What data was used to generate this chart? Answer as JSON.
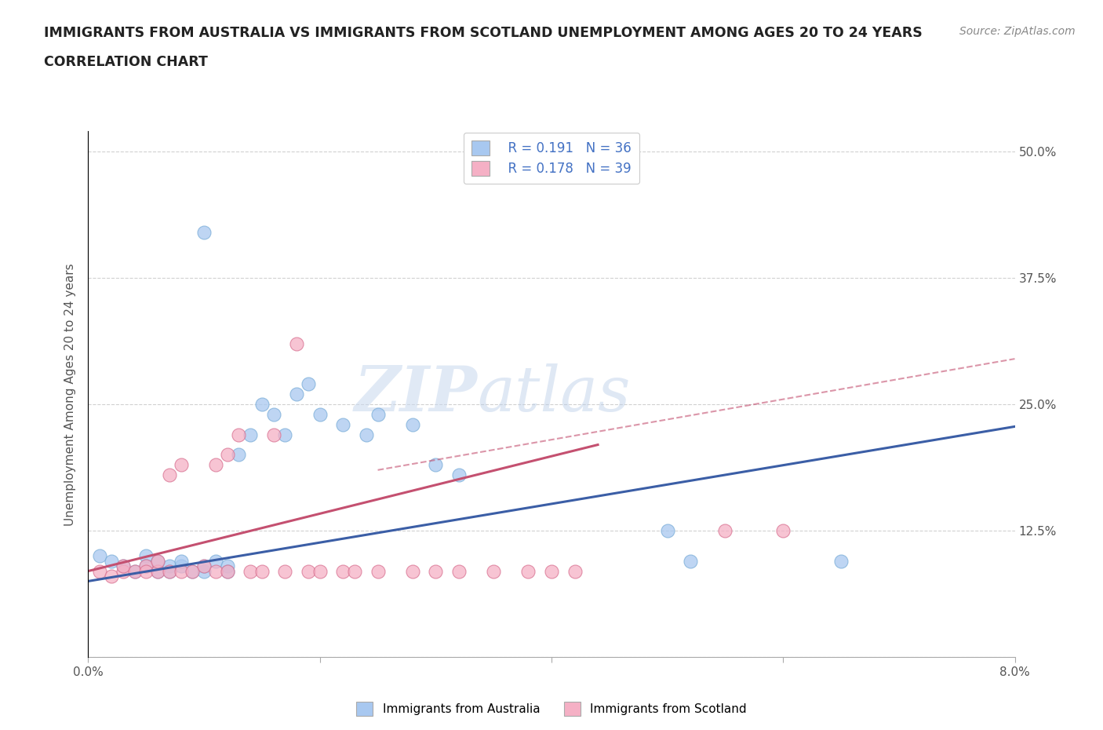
{
  "title_line1": "IMMIGRANTS FROM AUSTRALIA VS IMMIGRANTS FROM SCOTLAND UNEMPLOYMENT AMONG AGES 20 TO 24 YEARS",
  "title_line2": "CORRELATION CHART",
  "source_text": "Source: ZipAtlas.com",
  "ylabel": "Unemployment Among Ages 20 to 24 years",
  "xlim": [
    0.0,
    0.08
  ],
  "ylim": [
    0.0,
    0.52
  ],
  "xticks": [
    0.0,
    0.02,
    0.04,
    0.06,
    0.08
  ],
  "xtick_labels": [
    "0.0%",
    "",
    "",
    "",
    "8.0%"
  ],
  "ytick_positions": [
    0.0,
    0.125,
    0.25,
    0.375,
    0.5
  ],
  "ytick_labels_right": [
    "",
    "12.5%",
    "25.0%",
    "37.5%",
    "50.0%"
  ],
  "australia_color": "#a8c8f0",
  "australia_edge_color": "#7aadd8",
  "scotland_color": "#f5b0c5",
  "scotland_edge_color": "#d87090",
  "australia_line_color": "#3b5ea6",
  "scotland_line_color": "#c45070",
  "scotland_dashed_color": "#c45070",
  "R_australia": 0.191,
  "N_australia": 36,
  "R_scotland": 0.178,
  "N_scotland": 39,
  "legend_label_australia": "Immigrants from Australia",
  "legend_label_scotland": "Immigrants from Scotland",
  "watermark_part1": "ZIP",
  "watermark_part2": "atlas",
  "background_color": "#ffffff",
  "grid_color": "#cccccc",
  "australia_scatter": [
    [
      0.001,
      0.1
    ],
    [
      0.002,
      0.095
    ],
    [
      0.003,
      0.09
    ],
    [
      0.004,
      0.085
    ],
    [
      0.005,
      0.1
    ],
    [
      0.005,
      0.09
    ],
    [
      0.006,
      0.085
    ],
    [
      0.006,
      0.095
    ],
    [
      0.007,
      0.09
    ],
    [
      0.007,
      0.085
    ],
    [
      0.008,
      0.09
    ],
    [
      0.008,
      0.095
    ],
    [
      0.009,
      0.085
    ],
    [
      0.01,
      0.085
    ],
    [
      0.01,
      0.09
    ],
    [
      0.011,
      0.095
    ],
    [
      0.012,
      0.09
    ],
    [
      0.012,
      0.085
    ],
    [
      0.013,
      0.2
    ],
    [
      0.014,
      0.22
    ],
    [
      0.015,
      0.25
    ],
    [
      0.016,
      0.24
    ],
    [
      0.017,
      0.22
    ],
    [
      0.018,
      0.26
    ],
    [
      0.019,
      0.27
    ],
    [
      0.02,
      0.24
    ],
    [
      0.022,
      0.23
    ],
    [
      0.024,
      0.22
    ],
    [
      0.025,
      0.24
    ],
    [
      0.028,
      0.23
    ],
    [
      0.03,
      0.19
    ],
    [
      0.032,
      0.18
    ],
    [
      0.01,
      0.42
    ],
    [
      0.05,
      0.125
    ],
    [
      0.052,
      0.095
    ],
    [
      0.065,
      0.095
    ]
  ],
  "scotland_scatter": [
    [
      0.001,
      0.085
    ],
    [
      0.002,
      0.08
    ],
    [
      0.003,
      0.085
    ],
    [
      0.003,
      0.09
    ],
    [
      0.004,
      0.085
    ],
    [
      0.005,
      0.09
    ],
    [
      0.005,
      0.085
    ],
    [
      0.006,
      0.085
    ],
    [
      0.006,
      0.095
    ],
    [
      0.007,
      0.085
    ],
    [
      0.007,
      0.18
    ],
    [
      0.008,
      0.085
    ],
    [
      0.008,
      0.19
    ],
    [
      0.009,
      0.085
    ],
    [
      0.01,
      0.09
    ],
    [
      0.011,
      0.085
    ],
    [
      0.011,
      0.19
    ],
    [
      0.012,
      0.085
    ],
    [
      0.012,
      0.2
    ],
    [
      0.013,
      0.22
    ],
    [
      0.014,
      0.085
    ],
    [
      0.015,
      0.085
    ],
    [
      0.016,
      0.22
    ],
    [
      0.017,
      0.085
    ],
    [
      0.018,
      0.31
    ],
    [
      0.019,
      0.085
    ],
    [
      0.02,
      0.085
    ],
    [
      0.022,
      0.085
    ],
    [
      0.023,
      0.085
    ],
    [
      0.025,
      0.085
    ],
    [
      0.028,
      0.085
    ],
    [
      0.03,
      0.085
    ],
    [
      0.032,
      0.085
    ],
    [
      0.035,
      0.085
    ],
    [
      0.038,
      0.085
    ],
    [
      0.04,
      0.085
    ],
    [
      0.042,
      0.085
    ],
    [
      0.055,
      0.125
    ],
    [
      0.06,
      0.125
    ]
  ],
  "legend_text_color": "#4472c4",
  "title_fontsize": 12.5,
  "subtitle_fontsize": 12.5,
  "axis_label_fontsize": 11,
  "tick_fontsize": 11,
  "source_fontsize": 10
}
